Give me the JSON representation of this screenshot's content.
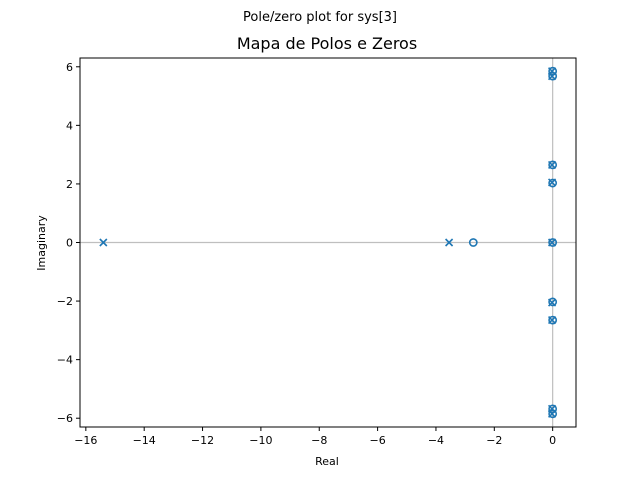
{
  "chart_data": {
    "type": "scatter",
    "suptitle": "Pole/zero plot for sys[3]",
    "title": "Mapa de Polos e Zeros",
    "xlabel": "Real",
    "ylabel": "Imaginary",
    "xlim": [
      -16.2,
      0.8
    ],
    "ylim": [
      -6.3,
      6.3
    ],
    "xticks": [
      -16,
      -14,
      -12,
      -10,
      -8,
      -6,
      -4,
      -2,
      0
    ],
    "yticks": [
      -6,
      -4,
      -2,
      0,
      2,
      4,
      6
    ],
    "grid": false,
    "reference_lines": {
      "x": 0,
      "y": 0,
      "color": "#bfbfbf"
    },
    "marker_color": "#1f77b4",
    "series": [
      {
        "marker": "x",
        "points": [
          [
            -15.4,
            0
          ],
          [
            -3.55,
            0
          ],
          [
            -0.02,
            0
          ],
          [
            -0.02,
            5.85
          ],
          [
            -0.02,
            -5.85
          ],
          [
            -0.02,
            5.68
          ],
          [
            -0.02,
            -5.68
          ],
          [
            -0.02,
            2.65
          ],
          [
            -0.02,
            -2.65
          ],
          [
            -0.02,
            2.05
          ],
          [
            -0.02,
            -2.05
          ]
        ]
      },
      {
        "marker": "o",
        "points": [
          [
            -2.72,
            0
          ],
          [
            0.0,
            0
          ],
          [
            0.0,
            5.85
          ],
          [
            0.0,
            -5.85
          ],
          [
            0.0,
            5.68
          ],
          [
            0.0,
            -5.68
          ],
          [
            0.0,
            2.65
          ],
          [
            0.0,
            -2.65
          ],
          [
            0.0,
            2.03
          ],
          [
            0.0,
            -2.03
          ]
        ]
      }
    ]
  }
}
